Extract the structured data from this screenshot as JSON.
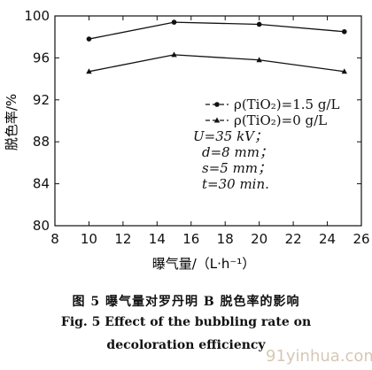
{
  "chart_data": {
    "type": "line",
    "x": [
      10,
      15,
      20,
      25
    ],
    "series": [
      {
        "name": "ρ(TiO₂)=1.5 g/L",
        "marker": "circle",
        "values": [
          97.8,
          99.4,
          99.2,
          98.5
        ]
      },
      {
        "name": "ρ(TiO₂)=0 g/L",
        "marker": "triangle",
        "values": [
          94.7,
          96.3,
          95.8,
          94.7
        ]
      }
    ],
    "xlabel": "曝气量/（L·h⁻¹）",
    "ylabel": "脱色率/%",
    "xlim": [
      8,
      26
    ],
    "ylim": [
      80,
      100
    ],
    "xticks": [
      "8",
      "10",
      "12",
      "14",
      "16",
      "18",
      "20",
      "22",
      "24",
      "26"
    ],
    "yticks": [
      "80",
      "84",
      "88",
      "92",
      "96",
      "100"
    ],
    "grid": false,
    "legend_position": "right-center",
    "annotations": [
      "U=35 kV；",
      "d=8 mm；",
      "s=5 mm；",
      "t=30 min."
    ]
  },
  "caption": {
    "cn": "图 5   曝气量对罗丹明 B 脱色率的影响",
    "en_line1": "Fig. 5    Effect of the bubbling rate on",
    "en_line2": "decoloration efficiency"
  },
  "watermark": "91yinhua.com",
  "colors": {
    "ink": "#111111",
    "watermark": "#c9b59a"
  }
}
